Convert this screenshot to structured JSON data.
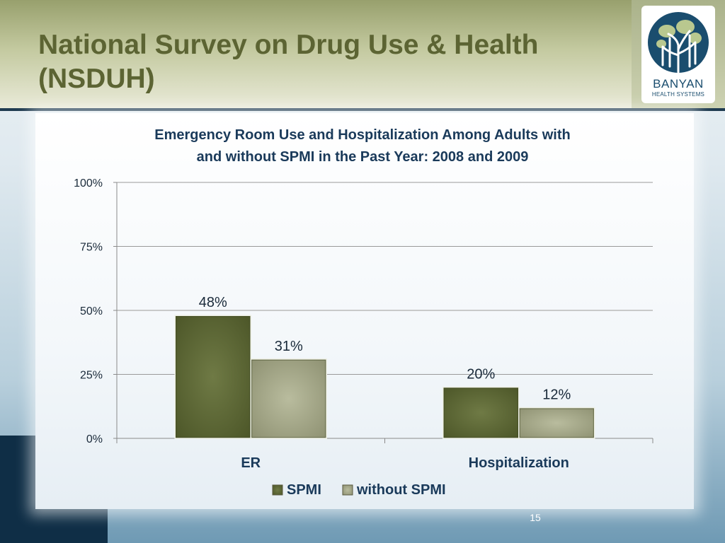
{
  "slide": {
    "title_line1": "National Survey on Drug Use & Health",
    "title_line2": "(NSDUH)",
    "page_number": "15"
  },
  "logo": {
    "name": "BANYAN",
    "tagline": "HEALTH SYSTEMS",
    "icon": "banyan-tree-icon"
  },
  "colors": {
    "title": "#5c6433",
    "series_spmi": "#5a6632",
    "series_without_spmi": "#a7aa8c",
    "navy": "#0f2e46"
  },
  "chart_data": {
    "type": "bar",
    "title_line1": "Emergency Room Use and Hospitalization Among Adults with",
    "title_line2": "and without SPMI in the Past Year: 2008 and 2009",
    "categories": [
      "ER",
      "Hospitalization"
    ],
    "series": [
      {
        "name": "SPMI",
        "values": [
          48,
          20
        ],
        "labels": [
          "48%",
          "20%"
        ]
      },
      {
        "name": "without SPMI",
        "values": [
          31,
          12
        ],
        "labels": [
          "31%",
          "12%"
        ]
      }
    ],
    "yticks": [
      "0%",
      "25%",
      "50%",
      "75%",
      "100%"
    ],
    "ytick_values": [
      0,
      25,
      50,
      75,
      100
    ],
    "ylim": [
      0,
      100
    ],
    "grid": true,
    "legend_position": "bottom"
  }
}
